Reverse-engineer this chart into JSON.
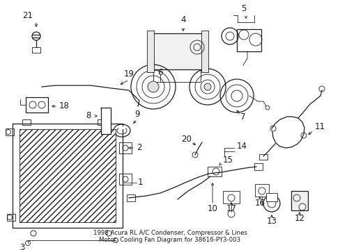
{
  "title": "1998 Acura RL A/C Condenser, Compressor & Lines\nMotor, Cooling Fan Diagram for 38616-PY3-003",
  "bg_color": "#ffffff",
  "line_color": "#1a1a1a",
  "label_fontsize": 8.5,
  "title_fontsize": 6.2,
  "figsize": [
    4.89,
    3.6
  ],
  "dpi": 100
}
